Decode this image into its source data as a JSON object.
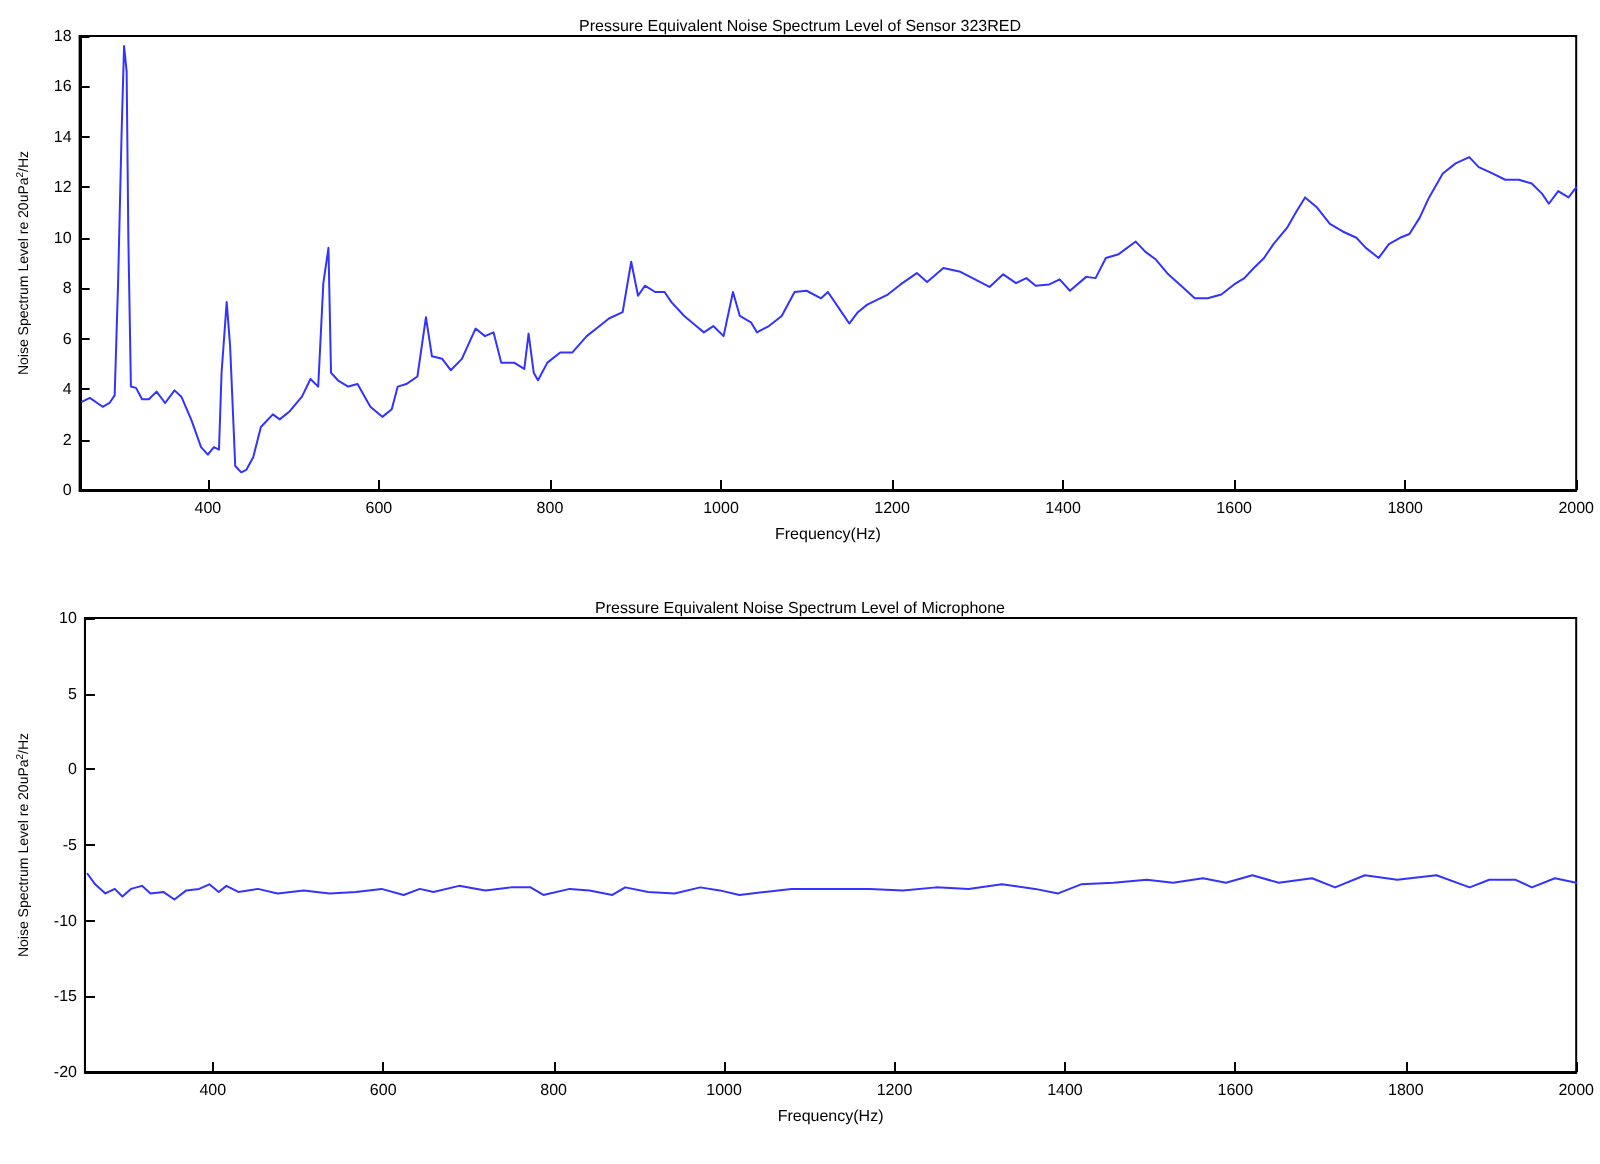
{
  "chart_data": [
    {
      "type": "line",
      "title": "Pressure Equivalent Noise Spectrum Level of Sensor 323RED",
      "xlabel": "Frequency(Hz)",
      "ylabel": "Noise Spectrum Level re 20uPa$^{2}$/Hz",
      "xlim": [
        250,
        2000
      ],
      "xticks": [
        400,
        600,
        800,
        1000,
        1200,
        1400,
        1600,
        1800,
        2000
      ],
      "ylim": [
        0,
        18
      ],
      "yticks": [
        0,
        2,
        4,
        6,
        8,
        10,
        12,
        14,
        16,
        18
      ],
      "grid": false,
      "marker": "none",
      "line_style": "solid",
      "series": [
        {
          "color": "#3333ff",
          "x": [
            253,
            262,
            277,
            285,
            291,
            295,
            299,
            302,
            305,
            307,
            310,
            316,
            323,
            331,
            340,
            350,
            361,
            369,
            381,
            392,
            400,
            407,
            413,
            416,
            422,
            426,
            432,
            439,
            445,
            453,
            462,
            476,
            484,
            495,
            510,
            520,
            529,
            535,
            541,
            544,
            552,
            564,
            575,
            590,
            604,
            615,
            622,
            632,
            645,
            655,
            662,
            674,
            684,
            697,
            713,
            724,
            734,
            743,
            758,
            770,
            775,
            781,
            786,
            797,
            812,
            826,
            843,
            858,
            869,
            885,
            895,
            903,
            911,
            923,
            934,
            942,
            957,
            971,
            980,
            991,
            1003,
            1014,
            1022,
            1035,
            1042,
            1056,
            1071,
            1086,
            1100,
            1117,
            1125,
            1141,
            1150,
            1160,
            1171,
            1195,
            1210,
            1229,
            1241,
            1260,
            1280,
            1297,
            1314,
            1330,
            1345,
            1357,
            1368,
            1384,
            1396,
            1408,
            1427,
            1438,
            1450,
            1465,
            1485,
            1496,
            1508,
            1523,
            1538,
            1554,
            1569,
            1585,
            1600,
            1612,
            1623,
            1635,
            1646,
            1662,
            1673,
            1683,
            1697,
            1712,
            1727,
            1743,
            1754,
            1769,
            1781,
            1794,
            1805,
            1817,
            1828,
            1844,
            1859,
            1875,
            1886,
            1902,
            1917,
            1933,
            1948,
            1960,
            1968,
            1979,
            1991,
            2000
          ],
          "values": [
            3.5,
            3.65,
            3.3,
            3.45,
            3.75,
            8.2,
            14,
            17.6,
            16.6,
            10,
            4.1,
            4.05,
            3.6,
            3.6,
            3.9,
            3.45,
            3.95,
            3.7,
            2.75,
            1.7,
            1.4,
            1.7,
            1.6,
            4.65,
            7.45,
            5.7,
            0.95,
            0.7,
            0.8,
            1.3,
            2.5,
            3.0,
            2.8,
            3.1,
            3.7,
            4.4,
            4.1,
            8.2,
            9.6,
            4.65,
            4.35,
            4.1,
            4.2,
            3.3,
            2.9,
            3.2,
            4.1,
            4.2,
            4.5,
            6.85,
            5.3,
            5.2,
            4.75,
            5.2,
            6.4,
            6.1,
            6.25,
            5.05,
            5.05,
            4.8,
            6.2,
            4.65,
            4.35,
            5.05,
            5.45,
            5.45,
            6.1,
            6.5,
            6.8,
            7.05,
            9.05,
            7.7,
            8.1,
            7.85,
            7.85,
            7.45,
            6.9,
            6.5,
            6.25,
            6.5,
            6.1,
            7.85,
            6.9,
            6.65,
            6.25,
            6.5,
            6.9,
            7.85,
            7.9,
            7.6,
            7.85,
            7.05,
            6.6,
            7.05,
            7.35,
            7.75,
            8.15,
            8.6,
            8.25,
            8.8,
            8.65,
            8.35,
            8.05,
            8.55,
            8.2,
            8.4,
            8.1,
            8.15,
            8.35,
            7.9,
            8.45,
            8.4,
            9.2,
            9.35,
            9.85,
            9.45,
            9.15,
            8.55,
            8.1,
            7.6,
            7.6,
            7.75,
            8.15,
            8.4,
            8.8,
            9.2,
            9.75,
            10.4,
            11.05,
            11.6,
            11.2,
            10.55,
            10.25,
            10.0,
            9.6,
            9.2,
            9.75,
            10.0,
            10.15,
            10.8,
            11.6,
            12.55,
            12.95,
            13.2,
            12.8,
            12.55,
            12.3,
            12.3,
            12.15,
            11.75,
            11.35,
            11.85,
            11.6,
            12.0
          ]
        }
      ]
    },
    {
      "type": "line",
      "title": "Pressure Equivalent Noise Spectrum Level of Microphone",
      "xlabel": "Frequency(Hz)",
      "ylabel": "Noise Spectrum Level re 20uPa$^{2}$/Hz",
      "xlim": [
        250,
        2000
      ],
      "xticks": [
        400,
        600,
        800,
        1000,
        1200,
        1400,
        1600,
        1800,
        2000
      ],
      "ylim": [
        -20,
        10
      ],
      "yticks": [
        -20,
        -15,
        -10,
        -5,
        0,
        5,
        10
      ],
      "grid": false,
      "marker": "none",
      "line_style": "solid",
      "series": [
        {
          "color": "#3333ff",
          "x": [
            253,
            262,
            274,
            285,
            294,
            304,
            317,
            327,
            342,
            355,
            369,
            384,
            396,
            407,
            416,
            430,
            453,
            476,
            507,
            537,
            568,
            598,
            624,
            643,
            659,
            689,
            720,
            750,
            773,
            788,
            819,
            842,
            869,
            884,
            911,
            942,
            972,
            995,
            1018,
            1048,
            1079,
            1109,
            1133,
            1171,
            1210,
            1249,
            1287,
            1326,
            1365,
            1392,
            1419,
            1457,
            1496,
            1527,
            1562,
            1589,
            1620,
            1651,
            1690,
            1717,
            1752,
            1790,
            1836,
            1875,
            1898,
            1929,
            1948,
            1975,
            2000
          ],
          "values": [
            -6.9,
            -7.6,
            -8.2,
            -7.9,
            -8.4,
            -7.9,
            -7.7,
            -8.2,
            -8.1,
            -8.6,
            -8.0,
            -7.9,
            -7.6,
            -8.1,
            -7.7,
            -8.1,
            -7.9,
            -8.2,
            -8.0,
            -8.2,
            -8.1,
            -7.9,
            -8.3,
            -7.9,
            -8.1,
            -7.7,
            -8.0,
            -7.8,
            -7.8,
            -8.3,
            -7.9,
            -8.0,
            -8.3,
            -7.8,
            -8.1,
            -8.2,
            -7.8,
            -8.0,
            -8.3,
            -8.1,
            -7.9,
            -7.9,
            -7.9,
            -7.9,
            -8.0,
            -7.8,
            -7.9,
            -7.6,
            -7.9,
            -8.2,
            -7.6,
            -7.5,
            -7.3,
            -7.5,
            -7.2,
            -7.5,
            -7.0,
            -7.5,
            -7.2,
            -7.8,
            -7.0,
            -7.3,
            -7.0,
            -7.8,
            -7.3,
            -7.3,
            -7.8,
            -7.2,
            -7.5
          ]
        }
      ]
    }
  ]
}
